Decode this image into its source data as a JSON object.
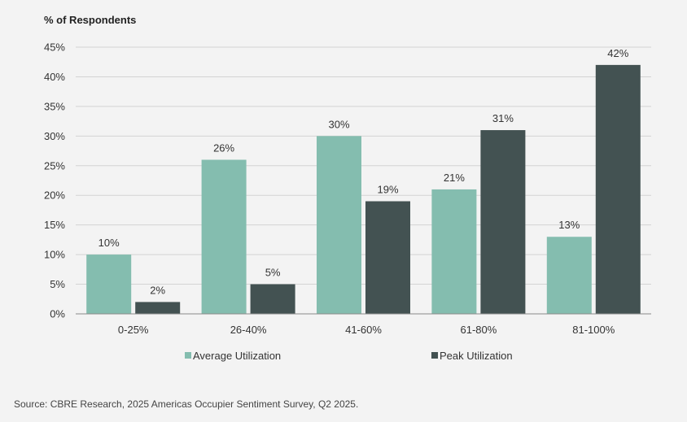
{
  "chart_data": {
    "type": "bar",
    "ylabel": "% of Respondents",
    "categories": [
      "0-25%",
      "26-40%",
      "41-60%",
      "61-80%",
      "81-100%"
    ],
    "series": [
      {
        "name": "Average Utilization",
        "values": [
          10,
          26,
          30,
          21,
          13
        ],
        "labels": [
          "10%",
          "26%",
          "30%",
          "21%",
          "13%"
        ],
        "color": "#84bdaf"
      },
      {
        "name": "Peak Utilization",
        "values": [
          2,
          5,
          19,
          31,
          42
        ],
        "labels": [
          "2%",
          "5%",
          "19%",
          "31%",
          "42%"
        ],
        "color": "#435252"
      }
    ],
    "ylim": [
      0,
      45
    ],
    "yticks": [
      0,
      5,
      10,
      15,
      20,
      25,
      30,
      35,
      40,
      45
    ],
    "ytick_labels": [
      "0%",
      "5%",
      "10%",
      "15%",
      "20%",
      "25%",
      "30%",
      "35%",
      "40%",
      "45%"
    ],
    "grid": true,
    "legend_position": "bottom"
  },
  "source": "Source: CBRE Research, 2025 Americas Occupier Sentiment Survey, Q2 2025."
}
